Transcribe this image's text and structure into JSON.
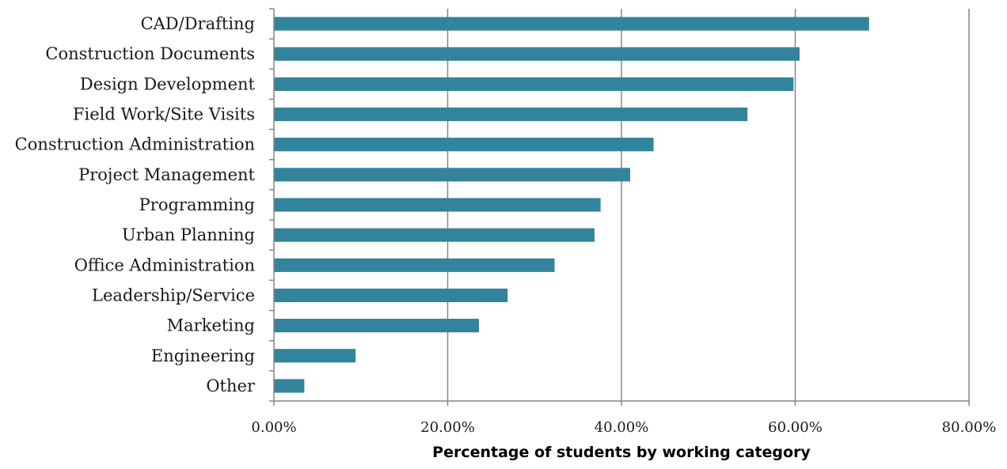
{
  "chart_data": {
    "type": "bar",
    "orientation": "horizontal",
    "categories": [
      "CAD/Drafting",
      "Construction Documents",
      "Design Development",
      "Field Work/Site Visits",
      "Construction Administration",
      "Project Management",
      "Programming",
      "Urban Planning",
      "Office Administration",
      "Leadership/Service",
      "Marketing",
      "Engineering",
      "Other"
    ],
    "values": [
      68.5,
      60.5,
      59.8,
      54.5,
      43.7,
      41.0,
      37.6,
      36.9,
      32.3,
      26.9,
      23.6,
      9.4,
      3.5
    ],
    "xlabel": "Percentage of students by working category",
    "ylabel": "",
    "xlim": [
      0,
      80
    ],
    "xticks": [
      "0.00%",
      "20.00%",
      "40.00%",
      "60.00%",
      "80.00%"
    ],
    "grid": "vertical",
    "bar_color": "#31849b",
    "grid_color": "#868686",
    "axis_color": "#868686"
  }
}
